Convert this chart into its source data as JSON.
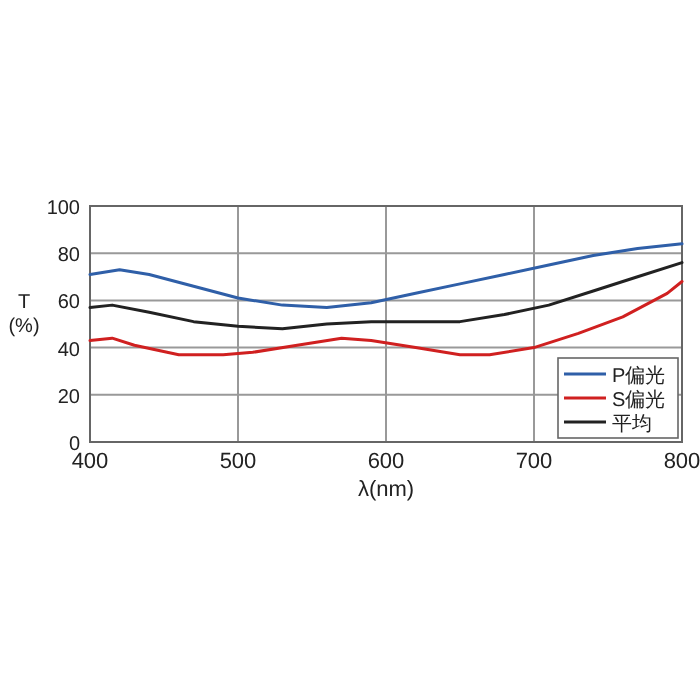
{
  "chart_data": {
    "type": "line",
    "xlabel": "λ(nm)",
    "ylabel": "T\n(%)",
    "xlim": [
      400,
      800
    ],
    "xticks": [
      400,
      500,
      600,
      700,
      800
    ],
    "ylim": [
      0,
      100
    ],
    "yticks": [
      0,
      20,
      40,
      60,
      80,
      100
    ],
    "grid": true,
    "legend": "bottom right",
    "line_style": "solid",
    "series": [
      {
        "name": "P偏光",
        "color": "#2f5fa8",
        "x": [
          400,
          420,
          440,
          470,
          500,
          530,
          560,
          590,
          620,
          650,
          680,
          710,
          740,
          770,
          800
        ],
        "values": [
          71,
          73,
          71,
          66,
          61,
          58,
          57,
          59,
          63,
          67,
          71,
          75,
          79,
          82,
          84
        ]
      },
      {
        "name": "S偏光",
        "color": "#d02020",
        "x": [
          400,
          415,
          430,
          460,
          490,
          510,
          540,
          570,
          590,
          620,
          650,
          670,
          700,
          730,
          760,
          790,
          800
        ],
        "values": [
          43,
          44,
          41,
          37,
          37,
          38,
          41,
          44,
          43,
          40,
          37,
          37,
          40,
          46,
          53,
          63,
          68
        ]
      },
      {
        "name": "平均",
        "color": "#222222",
        "x": [
          400,
          415,
          440,
          470,
          500,
          530,
          560,
          590,
          620,
          650,
          680,
          710,
          740,
          770,
          800
        ],
        "values": [
          57,
          58,
          55,
          51,
          49,
          48,
          50,
          51,
          51,
          51,
          54,
          58,
          64,
          70,
          76
        ]
      }
    ]
  }
}
